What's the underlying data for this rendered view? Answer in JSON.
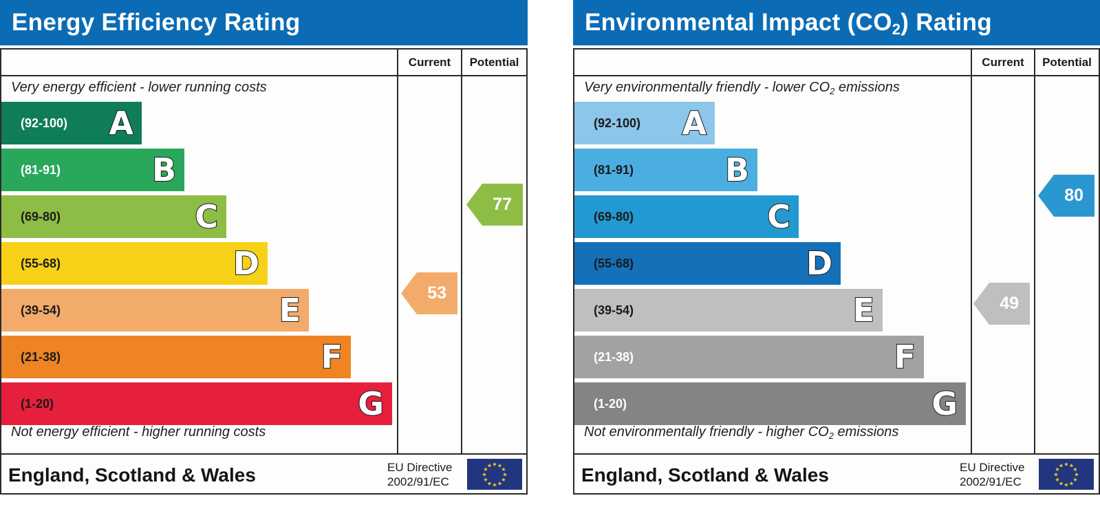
{
  "energy": {
    "title": "Energy Efficiency Rating",
    "col_current": "Current",
    "col_potential": "Potential",
    "caption_top": "Very energy efficient - lower running costs",
    "caption_bottom": "Not energy efficient - higher running costs",
    "bands": [
      {
        "range": "(92-100)",
        "letter": "A",
        "color": "#0e7d58",
        "text_color": "#ffffff"
      },
      {
        "range": "(81-91)",
        "letter": "B",
        "color": "#29a85b",
        "text_color": "#ffffff"
      },
      {
        "range": "(69-80)",
        "letter": "C",
        "color": "#8dbd45",
        "text_color": "#1a1a1a"
      },
      {
        "range": "(55-68)",
        "letter": "D",
        "color": "#f7d117",
        "text_color": "#1a1a1a"
      },
      {
        "range": "(39-54)",
        "letter": "E",
        "color": "#f3ab6c",
        "text_color": "#1a1a1a"
      },
      {
        "range": "(21-38)",
        "letter": "F",
        "color": "#ee8424",
        "text_color": "#1a1a1a"
      },
      {
        "range": "(1-20)",
        "letter": "G",
        "color": "#e51f3c",
        "text_color": "#1a1a1a"
      }
    ],
    "current": {
      "value": "53",
      "color": "#f3ab6c"
    },
    "potential": {
      "value": "77",
      "color": "#8dbd45"
    },
    "footer": {
      "region": "England, Scotland & Wales",
      "directive_line1": "EU Directive",
      "directive_line2": "2002/91/EC"
    }
  },
  "environmental": {
    "title_pre": "Environmental Impact (CO",
    "title_sub": "2",
    "title_post": ") Rating",
    "col_current": "Current",
    "col_potential": "Potential",
    "caption_top_pre": "Very environmentally friendly - lower CO",
    "caption_top_sub": "2",
    "caption_top_post": " emissions",
    "caption_bottom_pre": "Not environmentally friendly - higher CO",
    "caption_bottom_sub": "2",
    "caption_bottom_post": " emissions",
    "bands": [
      {
        "range": "(92-100)",
        "letter": "A",
        "color": "#8cc6ea",
        "text_color": "#1a1a1a"
      },
      {
        "range": "(81-91)",
        "letter": "B",
        "color": "#4aaee0",
        "text_color": "#1a1a1a"
      },
      {
        "range": "(69-80)",
        "letter": "C",
        "color": "#2399d1",
        "text_color": "#1a1a1a"
      },
      {
        "range": "(55-68)",
        "letter": "D",
        "color": "#1470b9",
        "text_color": "#1a1a1a"
      },
      {
        "range": "(39-54)",
        "letter": "E",
        "color": "#c1bfbe",
        "text_color": "#1a1a1a"
      },
      {
        "range": "(21-38)",
        "letter": "F",
        "color": "#a2a2a2",
        "text_color": "#ffffff"
      },
      {
        "range": "(1-20)",
        "letter": "G",
        "color": "#848484",
        "text_color": "#ffffff"
      }
    ],
    "current": {
      "value": "49",
      "color": "#c1bfbe"
    },
    "potential": {
      "value": "80",
      "color": "#2b97d0"
    },
    "footer": {
      "region": "England, Scotland & Wales",
      "directive_line1": "EU Directive",
      "directive_line2": "2002/91/EC"
    }
  },
  "chart_data": [
    {
      "type": "bar",
      "title": "Energy Efficiency Rating",
      "categories": [
        "A (92-100)",
        "B (81-91)",
        "C (69-80)",
        "D (55-68)",
        "E (39-54)",
        "F (21-38)",
        "G (1-20)"
      ],
      "series": [
        {
          "name": "Current",
          "values": [
            53
          ],
          "band": "E"
        },
        {
          "name": "Potential",
          "values": [
            77
          ],
          "band": "C"
        }
      ],
      "annotations": [
        "Very energy efficient - lower running costs",
        "Not energy efficient - higher running costs"
      ],
      "footer": "England, Scotland & Wales — EU Directive 2002/91/EC"
    },
    {
      "type": "bar",
      "title": "Environmental Impact (CO2) Rating",
      "categories": [
        "A (92-100)",
        "B (81-91)",
        "C (69-80)",
        "D (55-68)",
        "E (39-54)",
        "F (21-38)",
        "G (1-20)"
      ],
      "series": [
        {
          "name": "Current",
          "values": [
            49
          ],
          "band": "E"
        },
        {
          "name": "Potential",
          "values": [
            80
          ],
          "band": "C"
        }
      ],
      "annotations": [
        "Very environmentally friendly - lower CO2 emissions",
        "Not environmentally friendly - higher CO2 emissions"
      ],
      "footer": "England, Scotland & Wales — EU Directive 2002/91/EC"
    }
  ]
}
